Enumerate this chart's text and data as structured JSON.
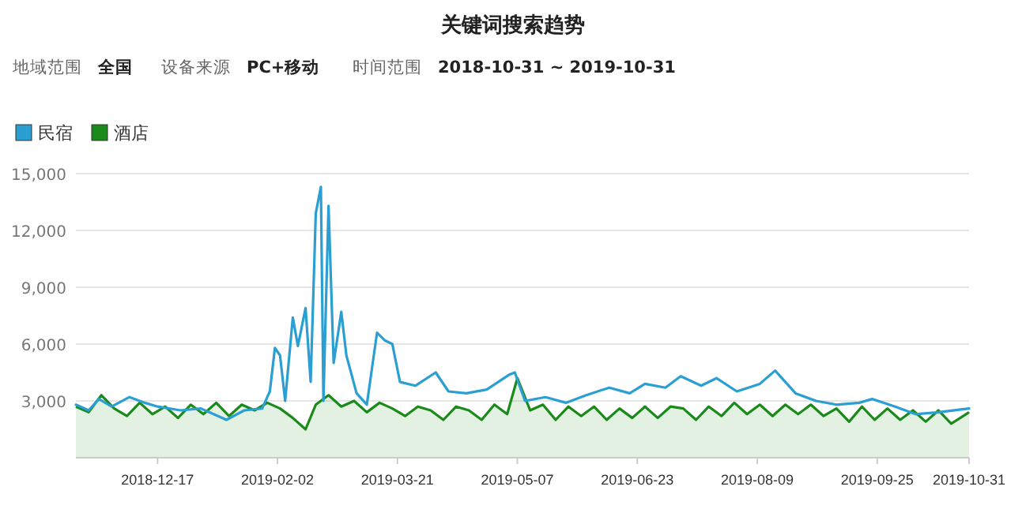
{
  "chart_data": {
    "type": "line",
    "title": "关键词搜索趋势",
    "annotations": [
      "地域范围",
      "全国",
      "设备来源",
      "PC+移动",
      "时间范围",
      "2018-10-31 ~ 2019-10-31"
    ],
    "xlim": [
      "2018-11-15",
      "2019-10-31"
    ],
    "xticks": [
      {
        "value": "2018-12-17",
        "label": "2018-12-17"
      },
      {
        "value": "2019-02-02",
        "label": "2019-02-02"
      },
      {
        "value": "2019-03-21",
        "label": "2019-03-21"
      },
      {
        "value": "2019-05-07",
        "label": "2019-05-07"
      },
      {
        "value": "2019-06-23",
        "label": "2019-06-23"
      },
      {
        "value": "2019-08-09",
        "label": "2019-08-09"
      },
      {
        "value": "2019-09-25",
        "label": "2019-09-25"
      },
      {
        "value": "2019-10-31",
        "label": "2019-10-31"
      }
    ],
    "ylim": [
      0,
      15000
    ],
    "yticks": [
      {
        "value": 3000,
        "label": "3,000"
      },
      {
        "value": 6000,
        "label": "6,000"
      },
      {
        "value": 9000,
        "label": "9,000"
      },
      {
        "value": 12000,
        "label": "12,000"
      },
      {
        "value": 15000,
        "label": "15,000"
      }
    ],
    "grid": "y",
    "legend": "top left",
    "marker": "none",
    "line_style": "solid",
    "series": [
      {
        "name": "民宿",
        "color": "#2b9fd1",
        "x": [
          "2018-11-15",
          "2018-11-20",
          "2018-11-24",
          "2018-11-29",
          "2018-12-06",
          "2018-12-12",
          "2018-12-17",
          "2018-12-26",
          "2019-01-03",
          "2019-01-13",
          "2019-01-20",
          "2019-01-27",
          "2019-01-30",
          "2019-02-01",
          "2019-02-03",
          "2019-02-05",
          "2019-02-08",
          "2019-02-10",
          "2019-02-13",
          "2019-02-15",
          "2019-02-17",
          "2019-02-19",
          "2019-02-20",
          "2019-02-22",
          "2019-02-24",
          "2019-02-27",
          "2019-03-01",
          "2019-03-05",
          "2019-03-09",
          "2019-03-13",
          "2019-03-16",
          "2019-03-19",
          "2019-03-22",
          "2019-03-28",
          "2019-04-05",
          "2019-04-10",
          "2019-04-17",
          "2019-04-25",
          "2019-05-04",
          "2019-05-06",
          "2019-05-10",
          "2019-05-18",
          "2019-05-26",
          "2019-06-03",
          "2019-06-12",
          "2019-06-20",
          "2019-06-26",
          "2019-07-04",
          "2019-07-10",
          "2019-07-18",
          "2019-07-24",
          "2019-08-01",
          "2019-08-10",
          "2019-08-16",
          "2019-08-24",
          "2019-09-01",
          "2019-09-09",
          "2019-09-18",
          "2019-09-23",
          "2019-10-02",
          "2019-10-10",
          "2019-10-19",
          "2019-10-31"
        ],
        "values": [
          2800,
          2500,
          3100,
          2700,
          3200,
          2900,
          2700,
          2500,
          2600,
          2000,
          2500,
          2600,
          3500,
          5800,
          5400,
          3000,
          7400,
          5900,
          7900,
          4000,
          12900,
          14300,
          3000,
          13300,
          5000,
          7700,
          5400,
          3400,
          2800,
          6600,
          6200,
          6000,
          4000,
          3800,
          4500,
          3500,
          3400,
          3600,
          4400,
          4500,
          3000,
          3200,
          2900,
          3300,
          3700,
          3400,
          3900,
          3700,
          4300,
          3800,
          4200,
          3500,
          3900,
          4600,
          3400,
          3000,
          2800,
          2900,
          3100,
          2700,
          2300,
          2400,
          2600
        ]
      },
      {
        "name": "酒店",
        "type": "area",
        "color": "#1a8a1a",
        "x": [
          "2018-11-15",
          "2018-11-20",
          "2018-11-25",
          "2018-11-30",
          "2018-12-05",
          "2018-12-10",
          "2018-12-15",
          "2018-12-20",
          "2018-12-25",
          "2018-12-30",
          "2019-01-04",
          "2019-01-09",
          "2019-01-14",
          "2019-01-19",
          "2019-01-24",
          "2019-01-29",
          "2019-02-03",
          "2019-02-08",
          "2019-02-13",
          "2019-02-17",
          "2019-02-22",
          "2019-02-27",
          "2019-03-04",
          "2019-03-09",
          "2019-03-14",
          "2019-03-19",
          "2019-03-24",
          "2019-03-29",
          "2019-04-03",
          "2019-04-08",
          "2019-04-13",
          "2019-04-18",
          "2019-04-23",
          "2019-04-28",
          "2019-05-03",
          "2019-05-07",
          "2019-05-12",
          "2019-05-17",
          "2019-05-22",
          "2019-05-27",
          "2019-06-01",
          "2019-06-06",
          "2019-06-11",
          "2019-06-16",
          "2019-06-21",
          "2019-06-26",
          "2019-07-01",
          "2019-07-06",
          "2019-07-11",
          "2019-07-16",
          "2019-07-21",
          "2019-07-26",
          "2019-07-31",
          "2019-08-05",
          "2019-08-10",
          "2019-08-15",
          "2019-08-20",
          "2019-08-25",
          "2019-08-30",
          "2019-09-04",
          "2019-09-09",
          "2019-09-14",
          "2019-09-19",
          "2019-09-24",
          "2019-09-29",
          "2019-10-04",
          "2019-10-09",
          "2019-10-14",
          "2019-10-19",
          "2019-10-24",
          "2019-10-31"
        ],
        "values": [
          2700,
          2400,
          3300,
          2600,
          2200,
          2900,
          2300,
          2700,
          2100,
          2800,
          2300,
          2900,
          2200,
          2800,
          2500,
          2900,
          2600,
          2100,
          1500,
          2800,
          3300,
          2700,
          3000,
          2400,
          2900,
          2600,
          2200,
          2700,
          2500,
          2000,
          2700,
          2500,
          2000,
          2800,
          2300,
          4200,
          2500,
          2800,
          2000,
          2700,
          2200,
          2700,
          2000,
          2600,
          2100,
          2700,
          2100,
          2700,
          2600,
          2000,
          2700,
          2200,
          2900,
          2300,
          2800,
          2200,
          2800,
          2300,
          2800,
          2200,
          2600,
          1900,
          2700,
          2000,
          2600,
          2000,
          2500,
          1900,
          2500,
          1800,
          2400
        ]
      }
    ]
  }
}
